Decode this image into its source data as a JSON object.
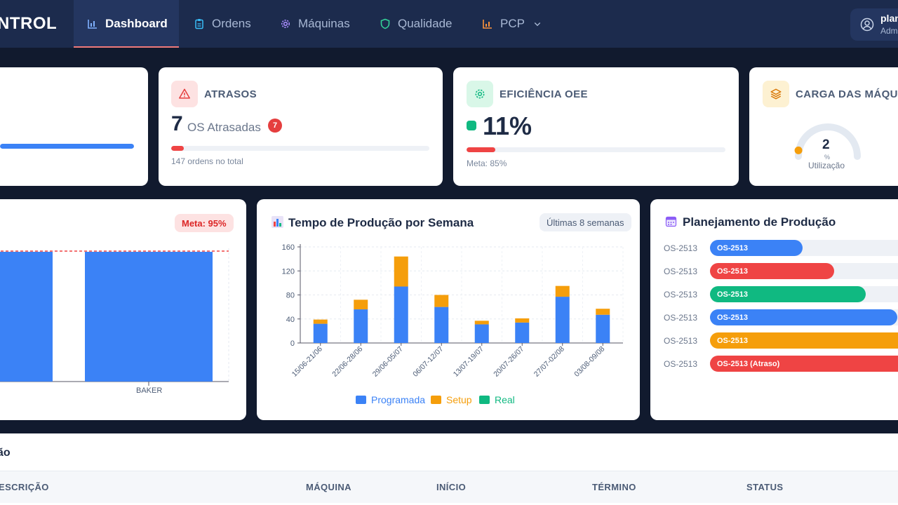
{
  "app": {
    "logo": "NTROL"
  },
  "nav": {
    "items": [
      {
        "label": "Dashboard",
        "icon": "bar-chart-icon",
        "active": true
      },
      {
        "label": "Ordens",
        "icon": "clipboard-icon",
        "active": false
      },
      {
        "label": "Máquinas",
        "icon": "gear-icon",
        "active": false
      },
      {
        "label": "Qualidade",
        "icon": "shield-icon",
        "active": false
      },
      {
        "label": "PCP",
        "icon": "chart-icon",
        "active": false,
        "dropdown": true
      }
    ],
    "user": {
      "name": "plan",
      "role": "Adm",
      "icon": "user-circle-icon"
    }
  },
  "stats": {
    "atrasos": {
      "title": "ATRASOS",
      "value": "7",
      "label": "OS Atrasadas",
      "badge": "7",
      "note": "147 ordens no total",
      "progress": 0.05,
      "color": "#ef4444"
    },
    "oee": {
      "title": "EFICIÊNCIA OEE",
      "value": "11%",
      "note": "Meta: 85%",
      "progress": 0.11,
      "color": "#ef4444",
      "status_color": "#10b981"
    },
    "carga": {
      "title": "CARGA DAS MÁQUIN",
      "value": "2",
      "unit": "%",
      "label": "Utilização",
      "progress": 0.02
    },
    "first_card": {
      "progress": 1.0
    }
  },
  "left_chart": {
    "meta_badge": "Meta: 95%",
    "xtick": "BAKER"
  },
  "production_chart": {
    "title": "Tempo de Produção por Semana",
    "range_pill": "Últimas 8 semanas"
  },
  "chart_data": {
    "type": "bar",
    "title": "Tempo de Produção por Semana",
    "categories": [
      "15/06-21/06",
      "22/06-28/06",
      "29/06-05/07",
      "06/07-12/07",
      "13/07-19/07",
      "20/07-26/07",
      "27/07-02/08",
      "03/08-09/08"
    ],
    "series": [
      {
        "name": "Programada",
        "color": "#3b82f6",
        "values": [
          32,
          56,
          94,
          60,
          31,
          34,
          77,
          47
        ]
      },
      {
        "name": "Setup",
        "color": "#f59e0b",
        "values": [
          7,
          16,
          50,
          20,
          6,
          7,
          18,
          10
        ]
      },
      {
        "name": "Real",
        "color": "#10b981",
        "values": [
          0,
          0,
          0,
          0,
          0,
          0,
          0,
          0
        ]
      }
    ],
    "stacked": true,
    "ylim": [
      0,
      160
    ],
    "yticks": [
      0,
      40,
      80,
      120,
      160
    ]
  },
  "planning": {
    "title": "Planejamento de Produção",
    "rows": [
      {
        "label": "OS-2513",
        "bar": "OS-2513",
        "color": "#3b82f6",
        "progress": 0.44
      },
      {
        "label": "OS-2513",
        "bar": "OS-2513",
        "color": "#ef4444",
        "progress": 0.59
      },
      {
        "label": "OS-2513",
        "bar": "OS-2513",
        "color": "#10b981",
        "progress": 0.74
      },
      {
        "label": "OS-2513",
        "bar": "OS-2513",
        "color": "#3b82f6",
        "progress": 0.89
      },
      {
        "label": "OS-2513",
        "bar": "OS-2513",
        "color": "#f59e0b",
        "progress": 1.0
      },
      {
        "label": "OS-2513",
        "bar": "OS-2513 (Atraso)",
        "color": "#ef4444",
        "progress": 1.0
      }
    ]
  },
  "table": {
    "title": "ão",
    "columns": [
      "ESCRIÇÃO",
      "MÁQUINA",
      "INÍCIO",
      "TÉRMINO",
      "STATUS"
    ]
  }
}
